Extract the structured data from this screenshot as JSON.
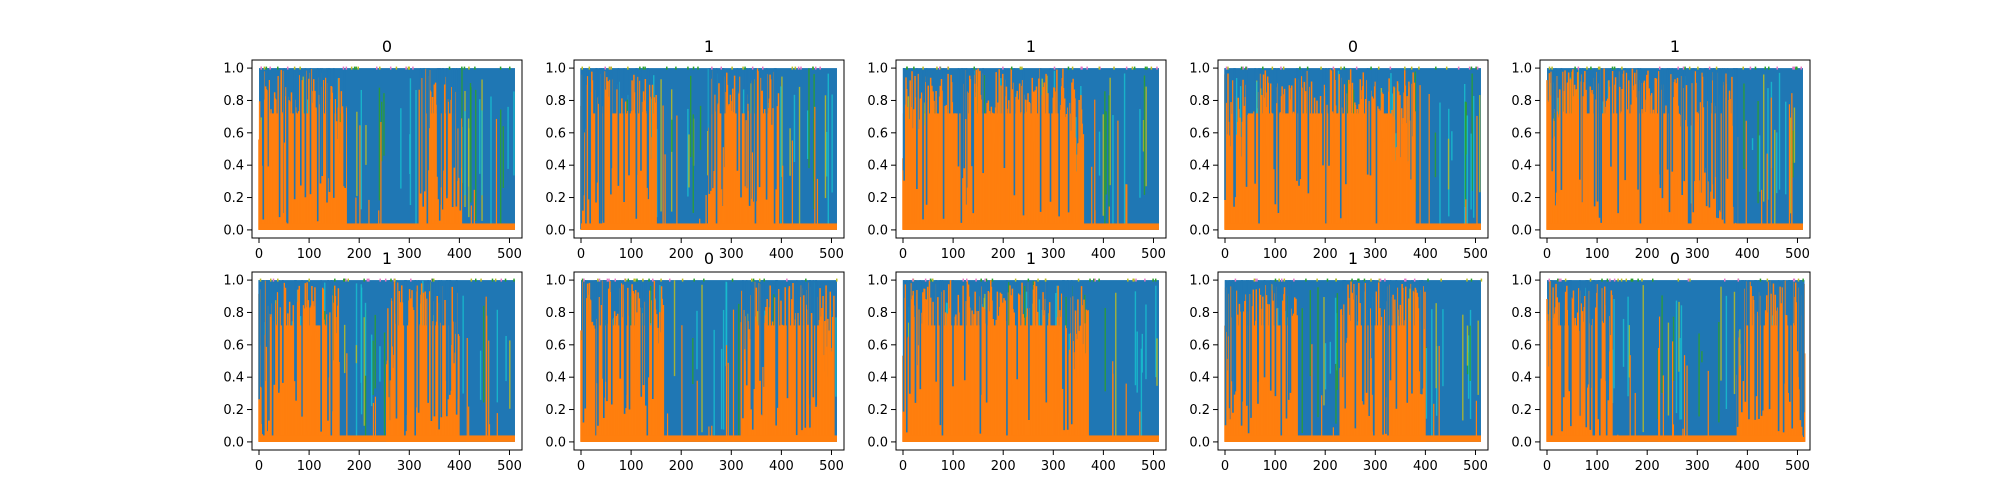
{
  "chart_data": {
    "type": "line",
    "layout": "2x5 grid of small multiples",
    "x_range": [
      0,
      511
    ],
    "xlim": [
      -14,
      525
    ],
    "ylim": [
      -0.05,
      1.05
    ],
    "xticks": [
      0,
      100,
      200,
      300,
      400,
      500
    ],
    "yticks": [
      0.0,
      0.2,
      0.4,
      0.6,
      0.8,
      1.0
    ],
    "ytick_labels": [
      "0.0",
      "0.2",
      "0.4",
      "0.6",
      "0.8",
      "1.0"
    ],
    "grid": false,
    "colors": {
      "blue": "#1f77b4",
      "orange": "#ff7f0e",
      "cyan": "#17becf",
      "olive": "#bcbd22",
      "green": "#2ca02c",
      "pink": "#e377c2"
    },
    "panels": [
      {
        "title": "0",
        "orange_segments": [
          [
            0,
            175
          ],
          [
            320,
            405
          ]
        ]
      },
      {
        "title": "1",
        "orange_segments": [
          [
            0,
            150
          ],
          [
            255,
            395
          ]
        ]
      },
      {
        "title": "1",
        "orange_segments": [
          [
            0,
            360
          ]
        ]
      },
      {
        "title": "0",
        "orange_segments": [
          [
            0,
            380
          ]
        ]
      },
      {
        "title": "1",
        "orange_segments": [
          [
            0,
            280
          ],
          [
            290,
            380
          ]
        ]
      },
      {
        "title": "1",
        "orange_segments": [
          [
            0,
            160
          ],
          [
            255,
            400
          ]
        ]
      },
      {
        "title": "0",
        "orange_segments": [
          [
            0,
            165
          ],
          [
            320,
            505
          ]
        ]
      },
      {
        "title": "1",
        "orange_segments": [
          [
            0,
            370
          ]
        ]
      },
      {
        "title": "1",
        "orange_segments": [
          [
            0,
            145
          ],
          [
            230,
            400
          ]
        ]
      },
      {
        "title": "0",
        "orange_segments": [
          [
            0,
            130
          ],
          [
            380,
            515
          ]
        ]
      }
    ]
  }
}
